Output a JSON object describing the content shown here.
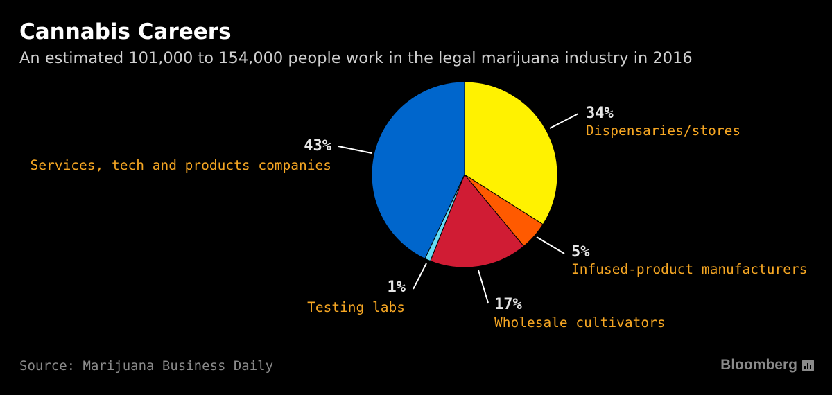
{
  "header": {
    "title": "Cannabis Careers",
    "subtitle": "An estimated 101,000 to 154,000 people work in the legal marijuana industry in 2016"
  },
  "footer": {
    "source": "Source: Marijuana Business Daily",
    "brand": "Bloomberg",
    "brand_icon": "bar-chart-icon"
  },
  "colors": {
    "background": "#000000",
    "label_color": "#f5a623",
    "percent_color": "#e6e6e6",
    "leader_color": "#ffffff"
  },
  "chart_data": {
    "type": "pie",
    "start_angle_deg": 0,
    "direction": "clockwise",
    "slices": [
      {
        "name": "Dispensaries/stores",
        "value": 34,
        "label": "34%",
        "color": "#fff200"
      },
      {
        "name": "Infused-product manufacturers",
        "value": 5,
        "label": "5%",
        "color": "#ff5a00"
      },
      {
        "name": "Wholesale cultivators",
        "value": 17,
        "label": "17%",
        "color": "#d01c34"
      },
      {
        "name": "Testing labs",
        "value": 1,
        "label": "1%",
        "color": "#66ddf5"
      },
      {
        "name": "Services, tech and products companies",
        "value": 43,
        "label": "43%",
        "color": "#0066cc"
      }
    ]
  }
}
